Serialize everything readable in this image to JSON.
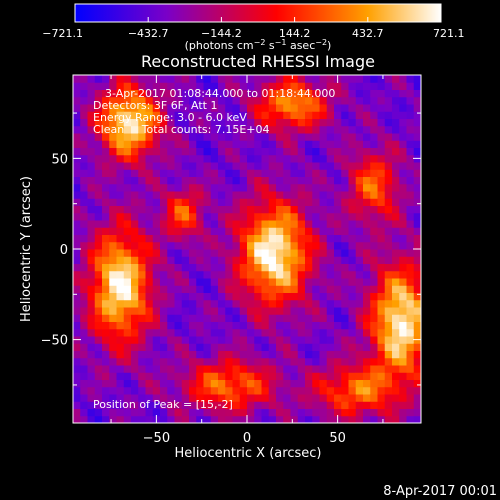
{
  "chart_data": {
    "type": "heatmap",
    "title": "Reconstructed RHESSI Image",
    "xlabel": "Heliocentric X (arcsec)",
    "ylabel": "Heliocentric Y (arcsec)",
    "xlim": [
      -96,
      96
    ],
    "ylim": [
      -96,
      96
    ],
    "x_ticks": [
      -50,
      0,
      50
    ],
    "y_ticks": [
      -50,
      0,
      50
    ],
    "colorbar": {
      "min": -721.1,
      "max": 721.1,
      "ticks": [
        -721.1,
        -432.7,
        -144.2,
        144.2,
        432.7,
        721.1
      ],
      "tick_labels": [
        "−721.1",
        "−432.7",
        "−144.2",
        "144.2",
        "432.7",
        "721.1"
      ],
      "label_parts": [
        "(photons cm",
        "−2",
        " s",
        "−1",
        " asec",
        "−2",
        ")"
      ],
      "colors": [
        "#0000ff",
        "#7a00c8",
        "#ff0000",
        "#ffa000",
        "#ffffff"
      ]
    },
    "annotations": [
      "3-Apr-2017 01:08:44.000 to 01:18:44.000",
      "Detectors: 3F 6F, Att 1",
      "Energy Range: 3.0 - 6.0 keV",
      "Clean     Total counts: 7.15E+04"
    ],
    "peak_label": "Position of Peak = [15,-2]",
    "sources": [
      {
        "x": 15,
        "y": -2,
        "amplitude": 721.1,
        "sigma_x": 14,
        "sigma_y": 20
      },
      {
        "x": -65,
        "y": 70,
        "amplitude": 680,
        "sigma_x": 12,
        "sigma_y": 14
      },
      {
        "x": -70,
        "y": -20,
        "amplitude": 690,
        "sigma_x": 12,
        "sigma_y": 22
      },
      {
        "x": 85,
        "y": -40,
        "amplitude": 700,
        "sigma_x": 12,
        "sigma_y": 22
      },
      {
        "x": 25,
        "y": 80,
        "amplitude": 420,
        "sigma_x": 14,
        "sigma_y": 10
      },
      {
        "x": -10,
        "y": -75,
        "amplitude": 320,
        "sigma_x": 18,
        "sigma_y": 10
      },
      {
        "x": 60,
        "y": -78,
        "amplitude": 300,
        "sigma_x": 16,
        "sigma_y": 10
      },
      {
        "x": 70,
        "y": 35,
        "amplitude": 260,
        "sigma_x": 10,
        "sigma_y": 14
      },
      {
        "x": -35,
        "y": 20,
        "amplitude": 220,
        "sigma_x": 8,
        "sigma_y": 10
      }
    ],
    "background_level": -380
  },
  "footer_date": "8-Apr-2017 00:01"
}
